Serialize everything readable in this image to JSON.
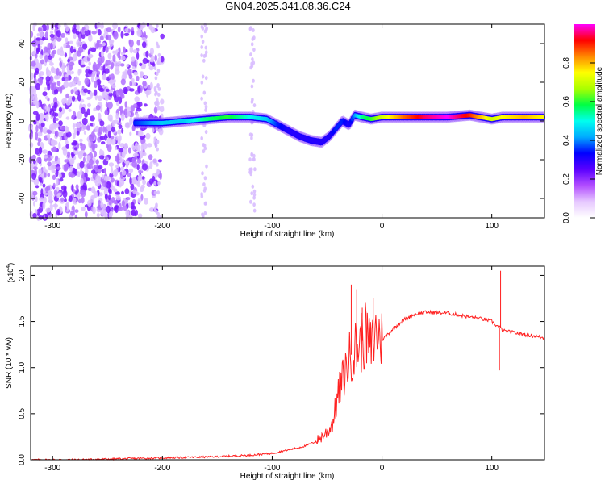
{
  "title": "GN04.2025.341.08.36.C24",
  "chart_data": [
    {
      "type": "heatmap",
      "xlabel": "Height of straight line (km)",
      "ylabel": "Frequency (Hz)",
      "xlim": [
        -320,
        148
      ],
      "ylim": [
        -50,
        50
      ],
      "xticks": [
        -300,
        -200,
        -100,
        0,
        100
      ],
      "yticks": [
        -40,
        -20,
        0,
        20,
        40
      ],
      "colorbar": {
        "label": "Normalized spectral amplitude",
        "range": [
          0,
          1
        ],
        "ticks": [
          "0.0",
          "0.2",
          "0.4",
          "0.6",
          "0.8"
        ],
        "colors": [
          "#ffffff",
          "#e6c8ff",
          "#b24dff",
          "#5a00ff",
          "#0000ff",
          "#00aaff",
          "#00ffee",
          "#00ff44",
          "#aaff00",
          "#ffff00",
          "#ff8800",
          "#ff0000",
          "#ff00ff"
        ]
      },
      "ridge": {
        "x": [
          -225,
          -200,
          -180,
          -160,
          -140,
          -120,
          -105,
          -95,
          -85,
          -75,
          -65,
          -55,
          -48,
          -42,
          -36,
          -30,
          -25,
          -18,
          -10,
          0,
          20,
          40,
          60,
          80,
          90,
          100,
          110,
          130,
          148
        ],
        "freq": [
          -1,
          -1,
          0,
          1,
          2,
          2,
          1,
          -2,
          -5,
          -8,
          -10,
          -11,
          -8,
          -4,
          0,
          -2,
          3,
          2,
          1,
          2,
          2,
          2,
          2,
          3,
          2,
          1,
          2,
          2,
          2
        ],
        "amplitude": [
          0.35,
          0.45,
          0.45,
          0.55,
          0.6,
          0.5,
          0.45,
          0.35,
          0.3,
          0.3,
          0.3,
          0.3,
          0.3,
          0.35,
          0.35,
          0.3,
          0.4,
          0.55,
          0.6,
          0.7,
          0.85,
          0.95,
          1.0,
          0.9,
          0.8,
          0.7,
          0.75,
          0.8,
          0.75
        ]
      }
    },
    {
      "type": "line",
      "xlabel": "Height of straight line (km)",
      "ylabel": "SNR (10 * v/v)",
      "y_exponent": "(x10",
      "y_exponent_power": "4",
      "xlim": [
        -320,
        148
      ],
      "ylim": [
        0,
        2.1
      ],
      "xticks": [
        -300,
        -200,
        -100,
        0,
        100
      ],
      "yticks": [
        "0.0",
        "0.5",
        "1.0",
        "1.5",
        "2.0"
      ],
      "color": "#ff2020",
      "x": [
        -320,
        -280,
        -240,
        -200,
        -160,
        -140,
        -120,
        -100,
        -80,
        -70,
        -60,
        -50,
        -45,
        -40,
        -35,
        -30,
        -25,
        -20,
        -15,
        -10,
        -5,
        0,
        10,
        20,
        30,
        40,
        60,
        80,
        95,
        100,
        105,
        108,
        110,
        120,
        135,
        148
      ],
      "y": [
        0.0,
        0.0,
        0.01,
        0.02,
        0.03,
        0.04,
        0.05,
        0.07,
        0.12,
        0.15,
        0.2,
        0.3,
        0.4,
        0.7,
        0.9,
        1.1,
        1.2,
        1.25,
        1.35,
        1.2,
        1.4,
        1.3,
        1.42,
        1.52,
        1.58,
        1.6,
        1.59,
        1.55,
        1.52,
        1.5,
        1.45,
        1.43,
        1.4,
        1.38,
        1.35,
        1.32
      ],
      "spikes": [
        {
          "x": -28,
          "y": 1.9
        },
        {
          "x": -23,
          "y": 1.85
        },
        {
          "x": -18,
          "y": 1.65
        },
        {
          "x": -8,
          "y": 1.75
        },
        {
          "x": 108,
          "y": 2.05
        },
        {
          "x": 107,
          "y": 0.97
        }
      ]
    }
  ]
}
